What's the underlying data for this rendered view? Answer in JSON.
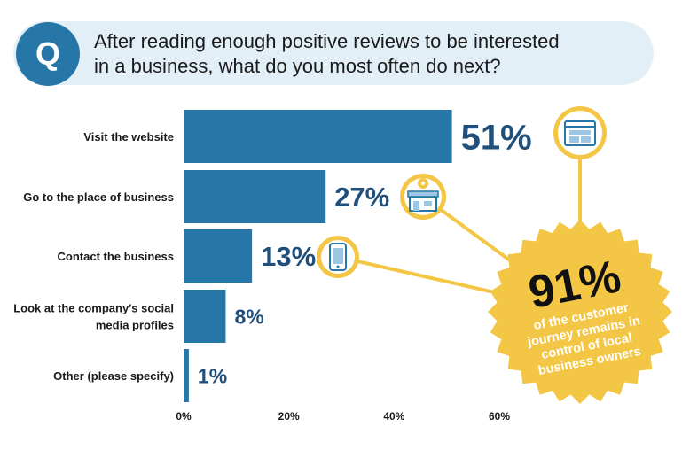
{
  "question": {
    "badge": "Q",
    "line1": "After reading enough positive reviews to be interested",
    "line2": "in a business, what do you most often do next?"
  },
  "chart_data": {
    "type": "bar",
    "orientation": "horizontal",
    "categories": [
      [
        "Visit the website"
      ],
      [
        "Go to the place of business"
      ],
      [
        "Contact the business"
      ],
      [
        "Look at the company's social",
        "media profiles"
      ],
      [
        "Other (please specify)"
      ]
    ],
    "values": [
      51,
      27,
      13,
      8,
      1
    ],
    "value_labels": [
      "51%",
      "27%",
      "13%",
      "8%",
      "1%"
    ],
    "xticks": [
      "0%",
      "20%",
      "40%",
      "60%"
    ],
    "xlim": [
      0,
      60
    ],
    "grid": false,
    "bar_color": "#2776a8",
    "label_color": "#1f4f7a"
  },
  "callout": {
    "big": "91%",
    "lines": [
      "of the customer",
      "journey remains in",
      "control of local",
      "business owners"
    ],
    "color": "#f4c645",
    "icons": [
      "browser-window-icon",
      "storefront-location-icon",
      "smartphone-icon"
    ]
  }
}
